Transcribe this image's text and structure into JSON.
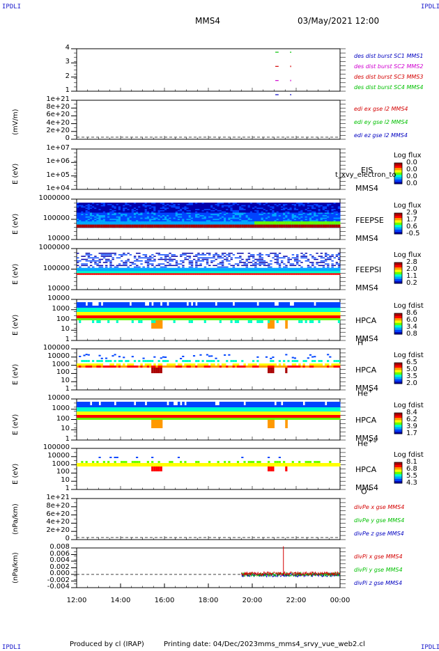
{
  "header": {
    "corner_tl": "IPDLI",
    "corner_tr": "IPDLI",
    "corner_bl": "IPDLI",
    "corner_br": "IPDLI",
    "mission": "MMS4",
    "datetime": "03/May/2021 12:00"
  },
  "footer": {
    "produced": "Produced by cl (IRAP)",
    "printed": "Printing date: 04/Dec/2023",
    "script": "mms_mms4_srvy_vue_web2.cl"
  },
  "colors": {
    "red": "#d40000",
    "green": "#00c000",
    "blue": "#0000c0",
    "magenta": "#d000d0",
    "spectrogram_scale": [
      "#0000aa",
      "#0044ff",
      "#00aaff",
      "#00ffcc",
      "#66ff00",
      "#ffff00",
      "#ff9900",
      "#ff0000",
      "#aa0000"
    ]
  },
  "chart_data": [
    {
      "type": "line",
      "panel": "burst",
      "ylabel": "",
      "yticks": [
        "4",
        "3",
        "2",
        "1"
      ],
      "legend": [
        {
          "label": "des dist burst SC1 MMS1",
          "color": "#0000c0"
        },
        {
          "label": "des dist burst SC2 MMS2",
          "color": "#d000d0"
        },
        {
          "label": "des dist burst SC3 MMS3",
          "color": "#d40000"
        },
        {
          "label": "des dist burst SC4 MMS4",
          "color": "#00c000"
        }
      ]
    },
    {
      "type": "line",
      "panel": "edi-e",
      "ylabel": "(mV/m)",
      "yticks": [
        "1e+21",
        "8e+20",
        "6e+20",
        "4e+20",
        "2e+20",
        "0"
      ],
      "legend": [
        {
          "label": "edi ex gse l2 MMS4",
          "color": "#d40000"
        },
        {
          "label": "edi ey gse l2 MMS4",
          "color": "#00c000"
        },
        {
          "label": "edi ez gse l2 MMS4",
          "color": "#0000c0"
        }
      ]
    },
    {
      "type": "heatmap",
      "panel": "eis",
      "ylabel": "E (eV)",
      "yscale": "log",
      "yticks": [
        "1e+07",
        "1e+06",
        "1e+05",
        "1e+04"
      ],
      "instrument": "EIS",
      "subtitle": "t_xvy_electron_to",
      "spacecraft": "MMS4",
      "colorbar_title": "Log flux",
      "colorbar_ticks": [
        "0.0",
        "0.0",
        "0.0",
        "0.0"
      ]
    },
    {
      "type": "heatmap",
      "panel": "feepse",
      "ylabel": "E (eV)",
      "yscale": "log",
      "yticks": [
        "1000000",
        "100000",
        "10000"
      ],
      "instrument": "FEEPSE",
      "spacecraft": "MMS4",
      "colorbar_title": "Log flux",
      "colorbar_ticks": [
        "2.9",
        "1.7",
        "0.6",
        "-0.5"
      ]
    },
    {
      "type": "heatmap",
      "panel": "feepsi",
      "ylabel": "E (eV)",
      "yscale": "log",
      "yticks": [
        "1000000",
        "100000",
        "10000"
      ],
      "instrument": "FEEPSI",
      "spacecraft": "MMS4",
      "colorbar_title": "Log flux",
      "colorbar_ticks": [
        "2.8",
        "2.0",
        "1.1",
        "0.2"
      ]
    },
    {
      "type": "heatmap",
      "panel": "hpca-h",
      "ylabel": "E (eV)",
      "yscale": "log",
      "yticks": [
        "10000",
        "1000",
        "100",
        "10",
        "1"
      ],
      "instrument": "HPCA",
      "spacecraft": "MMS4",
      "species": "H",
      "species_sup": "+",
      "colorbar_title": "Log fdist",
      "colorbar_ticks": [
        "8.6",
        "6.0",
        "3.4",
        "0.8"
      ]
    },
    {
      "type": "heatmap",
      "panel": "hpca-he",
      "ylabel": "E (eV)",
      "yscale": "log",
      "yticks": [
        "100000",
        "10000",
        "1000",
        "100",
        "10",
        "1"
      ],
      "instrument": "HPCA",
      "spacecraft": "MMS4",
      "species": "He",
      "species_sup": "+",
      "colorbar_title": "Log fdist",
      "colorbar_ticks": [
        "6.5",
        "5.0",
        "3.5",
        "2.0"
      ]
    },
    {
      "type": "heatmap",
      "panel": "hpca-hepp",
      "ylabel": "E (eV)",
      "yscale": "log",
      "yticks": [
        "10000",
        "1000",
        "100",
        "10",
        "1"
      ],
      "instrument": "HPCA",
      "spacecraft": "MMS4",
      "species": "He",
      "species_sup": "++",
      "colorbar_title": "Log fdist",
      "colorbar_ticks": [
        "8.4",
        "6.2",
        "3.9",
        "1.7"
      ]
    },
    {
      "type": "heatmap",
      "panel": "hpca-o",
      "ylabel": "E (eV)",
      "yscale": "log",
      "yticks": [
        "100000",
        "10000",
        "1000",
        "100",
        "10",
        "1"
      ],
      "instrument": "HPCA",
      "spacecraft": "MMS4",
      "species": "O",
      "species_sup": "+",
      "colorbar_title": "Log fdist",
      "colorbar_ticks": [
        "8.1",
        "6.8",
        "5.5",
        "4.3"
      ]
    },
    {
      "type": "line",
      "panel": "divpe",
      "ylabel": "(nPa/km)",
      "yticks": [
        "1e+21",
        "8e+20",
        "6e+20",
        "4e+20",
        "2e+20",
        "0"
      ],
      "legend": [
        {
          "label": "divPe x gse MMS4",
          "color": "#d40000"
        },
        {
          "label": "divPe y gse MMS4",
          "color": "#00c000"
        },
        {
          "label": "divPe z gse MMS4",
          "color": "#0000c0"
        }
      ]
    },
    {
      "type": "line",
      "panel": "divpi",
      "ylabel": "(nPa/km)",
      "yticks": [
        "0.008",
        "0.006",
        "0.004",
        "0.002",
        "0.000",
        "-0.002",
        "-0.004"
      ],
      "legend": [
        {
          "label": "divPi x gse MMS4",
          "color": "#d40000"
        },
        {
          "label": "divPi y gse MMS4",
          "color": "#00c000"
        },
        {
          "label": "divPi z gse MMS4",
          "color": "#0000c0"
        }
      ],
      "data_start": "19:30",
      "spike_time": "21:25",
      "spike_max": 0.0085
    }
  ],
  "xaxis": {
    "ticks": [
      "12:00",
      "14:00",
      "16:00",
      "18:00",
      "20:00",
      "22:00",
      "00:00"
    ],
    "start_hour": 12,
    "end_hour": 24
  }
}
